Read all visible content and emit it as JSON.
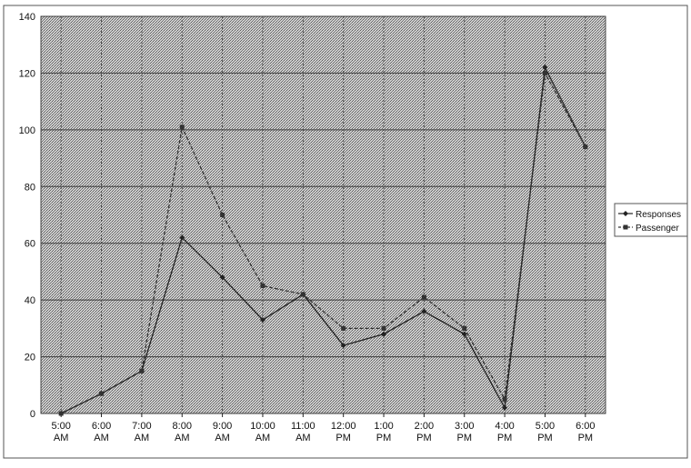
{
  "chart_data": {
    "type": "line",
    "title": "",
    "xlabel": "",
    "ylabel": "",
    "categories": [
      "5:00 AM",
      "6:00 AM",
      "7:00 AM",
      "8:00 AM",
      "9:00 AM",
      "10:00 AM",
      "11:00 AM",
      "12:00 PM",
      "1:00 PM",
      "2:00 PM",
      "3:00 PM",
      "4:00 PM",
      "5:00 PM",
      "6:00 PM"
    ],
    "category_labels": [
      [
        "5:00",
        "AM"
      ],
      [
        "6:00",
        "AM"
      ],
      [
        "7:00",
        "AM"
      ],
      [
        "8:00",
        "AM"
      ],
      [
        "9:00",
        "AM"
      ],
      [
        "10:00",
        "AM"
      ],
      [
        "11:00",
        "AM"
      ],
      [
        "12:00",
        "PM"
      ],
      [
        "1:00",
        "PM"
      ],
      [
        "2:00",
        "PM"
      ],
      [
        "3:00",
        "PM"
      ],
      [
        "4:00",
        "PM"
      ],
      [
        "5:00",
        "PM"
      ],
      [
        "6:00",
        "PM"
      ]
    ],
    "ylim": [
      0,
      140
    ],
    "yticks": [
      "0",
      "20",
      "40",
      "60",
      "80",
      "100",
      "120",
      "140"
    ],
    "legend_position": "right",
    "grid": true,
    "series": [
      {
        "name": "Responses",
        "marker": "diamond",
        "color": "#222222",
        "values": [
          0,
          7,
          15,
          62,
          48,
          33,
          42,
          24,
          28,
          36,
          28,
          2,
          122,
          94
        ]
      },
      {
        "name": "Passenger",
        "marker": "square",
        "color": "#333333",
        "values": [
          0,
          7,
          15,
          101,
          70,
          45,
          42,
          30,
          30,
          41,
          30,
          5,
          120,
          94
        ]
      }
    ]
  }
}
